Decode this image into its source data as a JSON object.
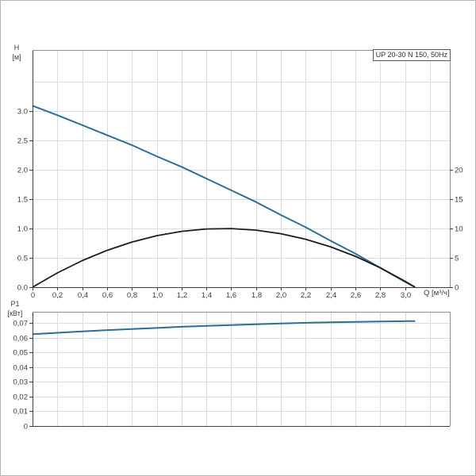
{
  "window": {
    "background": "#ffffff",
    "border_color": "#b5b5b5",
    "grid_color": "#d9dce0",
    "frame_dark": "#3f3f3f",
    "frame_light": "#8f8f8f",
    "text_color": "#3b3b3b"
  },
  "chart_data": [
    {
      "id": "hq",
      "type": "line",
      "title": "UP 20-30 N 150, 50Hz",
      "y_axis_label": "H",
      "y_axis_unit": "[м]",
      "x_axis_label": "Q [м³/ч]",
      "x_range": [
        0,
        3.36
      ],
      "y_range": [
        0,
        4.04
      ],
      "grid": {
        "x_step": 0.2,
        "x_max": 3.2,
        "y_step": 0.5,
        "y_max": 3.5
      },
      "x_ticks": [
        {
          "v": 0,
          "label": "0"
        },
        {
          "v": 0.2,
          "label": "0,2"
        },
        {
          "v": 0.4,
          "label": "0,4"
        },
        {
          "v": 0.6,
          "label": "0,6"
        },
        {
          "v": 0.8,
          "label": "0,8"
        },
        {
          "v": 1.0,
          "label": "1,0"
        },
        {
          "v": 1.2,
          "label": "1,2"
        },
        {
          "v": 1.4,
          "label": "1,4"
        },
        {
          "v": 1.6,
          "label": "1,6"
        },
        {
          "v": 1.8,
          "label": "1,8"
        },
        {
          "v": 2.0,
          "label": "2,0"
        },
        {
          "v": 2.2,
          "label": "2,2"
        },
        {
          "v": 2.4,
          "label": "2,4"
        },
        {
          "v": 2.6,
          "label": "2,6"
        },
        {
          "v": 2.8,
          "label": "2,8"
        },
        {
          "v": 3.0,
          "label": "3,0"
        }
      ],
      "y_left_ticks": [
        {
          "v": 0,
          "label": "0.0"
        },
        {
          "v": 0.5,
          "label": "0.5"
        },
        {
          "v": 1.0,
          "label": "1.0"
        },
        {
          "v": 1.5,
          "label": "1.5"
        },
        {
          "v": 2.0,
          "label": "2.0"
        },
        {
          "v": 2.5,
          "label": "2.5"
        },
        {
          "v": 3.0,
          "label": "3.0"
        }
      ],
      "y_right_ticks": [
        {
          "v": 0,
          "label": "0"
        },
        {
          "v": 0.5,
          "label": "5"
        },
        {
          "v": 1.0,
          "label": "10"
        },
        {
          "v": 1.5,
          "label": "15"
        },
        {
          "v": 2.0,
          "label": "20"
        }
      ],
      "series": [
        {
          "name": "head-curve",
          "color": "#2e6d96",
          "width": 2,
          "points": [
            [
              0,
              3.09
            ],
            [
              0.2,
              2.93
            ],
            [
              0.4,
              2.76
            ],
            [
              0.6,
              2.59
            ],
            [
              0.8,
              2.42
            ],
            [
              1.0,
              2.23
            ],
            [
              1.2,
              2.05
            ],
            [
              1.4,
              1.85
            ],
            [
              1.6,
              1.65
            ],
            [
              1.8,
              1.45
            ],
            [
              2.0,
              1.23
            ],
            [
              2.2,
              1.02
            ],
            [
              2.4,
              0.79
            ],
            [
              2.6,
              0.57
            ],
            [
              2.8,
              0.33
            ],
            [
              3.0,
              0.09
            ],
            [
              3.08,
              0
            ]
          ]
        },
        {
          "name": "aux-curve",
          "color": "#1c1c1c",
          "width": 1.8,
          "points": [
            [
              0,
              0
            ],
            [
              0.2,
              0.243
            ],
            [
              0.4,
              0.452
            ],
            [
              0.6,
              0.627
            ],
            [
              0.8,
              0.769
            ],
            [
              1.0,
              0.877
            ],
            [
              1.2,
              0.951
            ],
            [
              1.4,
              0.992
            ],
            [
              1.6,
              0.998
            ],
            [
              1.8,
              0.971
            ],
            [
              2.0,
              0.911
            ],
            [
              2.2,
              0.816
            ],
            [
              2.4,
              0.688
            ],
            [
              2.6,
              0.526
            ],
            [
              2.8,
              0.331
            ],
            [
              3.0,
              0.101
            ],
            [
              3.08,
              0
            ]
          ]
        }
      ]
    },
    {
      "id": "p1",
      "type": "line",
      "title": "",
      "y_axis_label": "P1",
      "y_axis_unit": "[кВт]",
      "x_axis_label": "",
      "x_range": [
        0,
        3.36
      ],
      "y_range": [
        0,
        0.0778
      ],
      "grid": {
        "x_step": 0.2,
        "x_max": 3.2,
        "y_step": 0.01,
        "y_max": 0.07
      },
      "x_ticks": [],
      "y_left_ticks": [
        {
          "v": 0,
          "label": "0"
        },
        {
          "v": 0.01,
          "label": "0,01"
        },
        {
          "v": 0.02,
          "label": "0,02"
        },
        {
          "v": 0.03,
          "label": "0,03"
        },
        {
          "v": 0.04,
          "label": "0,04"
        },
        {
          "v": 0.05,
          "label": "0,05"
        },
        {
          "v": 0.06,
          "label": "0,06"
        },
        {
          "v": 0.07,
          "label": "0,07"
        }
      ],
      "y_right_ticks": [],
      "series": [
        {
          "name": "power-curve",
          "color": "#2e6d96",
          "width": 2,
          "points": [
            [
              0,
              0.0625
            ],
            [
              0.2,
              0.0635
            ],
            [
              0.4,
              0.0644
            ],
            [
              0.6,
              0.0653
            ],
            [
              0.8,
              0.0661
            ],
            [
              1.0,
              0.0668
            ],
            [
              1.2,
              0.0676
            ],
            [
              1.4,
              0.0682
            ],
            [
              1.6,
              0.0688
            ],
            [
              1.8,
              0.0693
            ],
            [
              2.0,
              0.0698
            ],
            [
              2.2,
              0.0703
            ],
            [
              2.4,
              0.0706
            ],
            [
              2.6,
              0.0709
            ],
            [
              2.8,
              0.0712
            ],
            [
              3.0,
              0.0714
            ],
            [
              3.08,
              0.0715
            ]
          ]
        }
      ]
    }
  ]
}
